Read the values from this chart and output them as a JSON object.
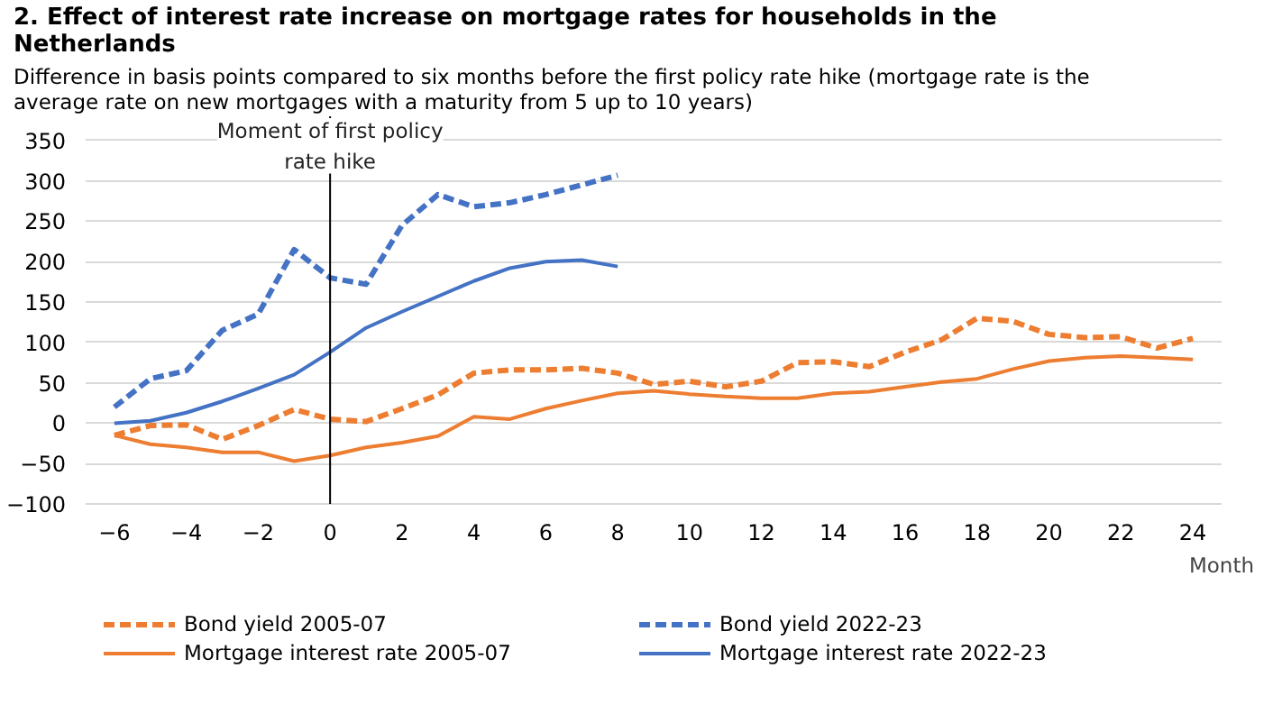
{
  "chart_data": {
    "type": "line",
    "title": "2. Effect of interest rate increase on mortgage rates for households in the Netherlands",
    "subtitle": "Difference in basis points compared to six months before the first policy rate hike (mortgage rate is the average rate on new mortgages with a maturity from 5 up to 10 years)",
    "xlabel": "Month",
    "x": [
      -6,
      -5,
      -4,
      -3,
      -2,
      -1,
      0,
      1,
      2,
      3,
      4,
      5,
      6,
      7,
      8,
      9,
      10,
      11,
      12,
      13,
      14,
      15,
      16,
      17,
      18,
      19,
      20,
      21,
      22,
      23,
      24
    ],
    "series": [
      {
        "name": "Bond yield 2005-07",
        "color": "#ed7d31",
        "line_style": "dashed",
        "values": [
          -15,
          -3,
          -2,
          -20,
          -3,
          17,
          5,
          2,
          18,
          35,
          62,
          66,
          66,
          68,
          62,
          48,
          52,
          45,
          52,
          75,
          76,
          70,
          88,
          103,
          130,
          126,
          110,
          106,
          107,
          93,
          105
        ]
      },
      {
        "name": "Mortgage interest rate 2005-07",
        "color": "#ed7d31",
        "line_style": "solid",
        "values": [
          -15,
          -26,
          -30,
          -36,
          -36,
          -47,
          -40,
          -30,
          -24,
          -16,
          8,
          5,
          18,
          28,
          37,
          40,
          36,
          33,
          31,
          31,
          37,
          39,
          45,
          51,
          55,
          67,
          77,
          81,
          83,
          81,
          79
        ]
      },
      {
        "name": "Bond yield 2022-23",
        "color": "#4472c4",
        "line_style": "dashed",
        "values": [
          20,
          55,
          65,
          115,
          135,
          215,
          180,
          172,
          245,
          283,
          268,
          273,
          283,
          295,
          307,
          null,
          null,
          null,
          null,
          null,
          null,
          null,
          null,
          null,
          null,
          null,
          null,
          null,
          null,
          null,
          null
        ]
      },
      {
        "name": "Mortgage interest rate 2022-23",
        "color": "#4472c4",
        "line_style": "solid",
        "values": [
          0,
          3,
          13,
          27,
          43,
          60,
          88,
          118,
          138,
          157,
          176,
          192,
          200,
          202,
          194,
          null,
          null,
          null,
          null,
          null,
          null,
          null,
          null,
          null,
          null,
          null,
          null,
          null,
          null,
          null,
          null
        ]
      }
    ],
    "ref_lines": [
      {
        "axis": "x",
        "value": 0,
        "label": "Moment of first policy rate hike",
        "color": "#000000"
      }
    ],
    "xlim": [
      -6.8,
      24.8
    ],
    "xticks": [
      -6,
      -4,
      -2,
      0,
      2,
      4,
      6,
      8,
      10,
      12,
      14,
      16,
      18,
      20,
      22,
      24
    ],
    "ylim": [
      -100,
      380
    ],
    "yticks": [
      -100,
      -50,
      0,
      50,
      100,
      150,
      200,
      250,
      300,
      350
    ],
    "grid": "y",
    "legend": "bottom",
    "marker": "none"
  }
}
